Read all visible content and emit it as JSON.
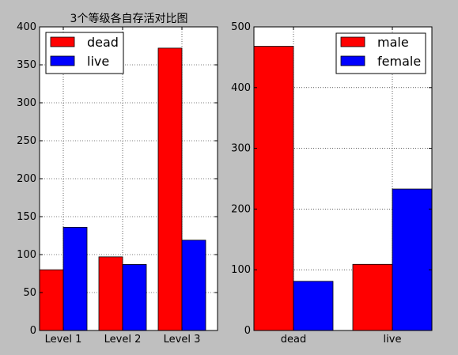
{
  "chart_data": [
    {
      "type": "bar",
      "title": "3个等级各自存活对比图",
      "categories": [
        "Level 1",
        "Level 2",
        "Level 3"
      ],
      "series": [
        {
          "name": "dead",
          "values": [
            80,
            97,
            372
          ],
          "color": "#ff0000"
        },
        {
          "name": "live",
          "values": [
            136,
            87,
            119
          ],
          "color": "#0000ff"
        }
      ],
      "ylim": [
        0,
        400
      ],
      "yticks": [
        0,
        50,
        100,
        150,
        200,
        250,
        300,
        350,
        400
      ],
      "grid": true,
      "legend": "top-left"
    },
    {
      "type": "bar",
      "title": "",
      "categories": [
        "dead",
        "live"
      ],
      "series": [
        {
          "name": "male",
          "values": [
            468,
            109
          ],
          "color": "#ff0000"
        },
        {
          "name": "female",
          "values": [
            81,
            233
          ],
          "color": "#0000ff"
        }
      ],
      "ylim": [
        0,
        500
      ],
      "yticks": [
        0,
        100,
        200,
        300,
        400,
        500
      ],
      "grid": true,
      "legend": "top-right"
    }
  ]
}
